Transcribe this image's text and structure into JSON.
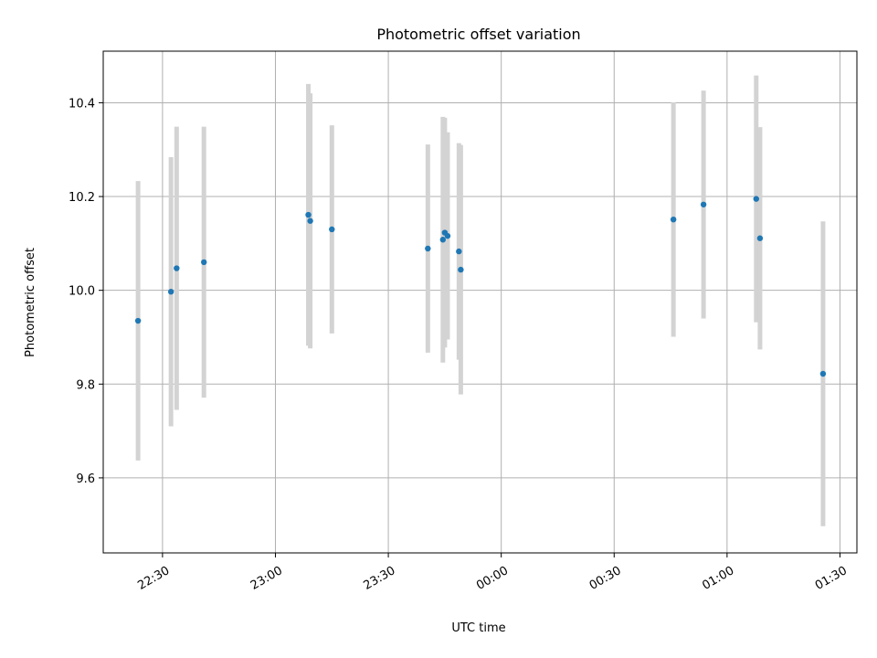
{
  "chart_data": {
    "type": "scatter",
    "title": "Photometric offset variation",
    "xlabel": "UTC time",
    "ylabel": "Photometric offset",
    "x_ticks": [
      "22:30",
      "23:00",
      "23:30",
      "00:00",
      "00:30",
      "01:00",
      "01:30"
    ],
    "y_ticks": [
      "9.6",
      "9.8",
      "10.0",
      "10.2",
      "10.4"
    ],
    "xlim": [
      "22:14:15",
      "01:34:30"
    ],
    "ylim": [
      9.44,
      10.51
    ],
    "grid": true,
    "colors": {
      "point": "#1f77b4",
      "errorbar": "#d3d3d3"
    },
    "series": [
      {
        "points": [
          {
            "x": "22:23:30",
            "y": 9.935,
            "err": 0.298
          },
          {
            "x": "22:32:15",
            "y": 9.997,
            "err": 0.287
          },
          {
            "x": "22:33:45",
            "y": 10.047,
            "err": 0.302
          },
          {
            "x": "22:41:00",
            "y": 10.06,
            "err": 0.289
          },
          {
            "x": "23:08:45",
            "y": 10.161,
            "err": 0.279
          },
          {
            "x": "23:09:15",
            "y": 10.148,
            "err": 0.272
          },
          {
            "x": "23:15:00",
            "y": 10.13,
            "err": 0.222
          },
          {
            "x": "23:40:30",
            "y": 10.089,
            "err": 0.222
          },
          {
            "x": "23:44:30",
            "y": 10.108,
            "err": 0.262
          },
          {
            "x": "23:45:00",
            "y": 10.123,
            "err": 0.245
          },
          {
            "x": "23:45:45",
            "y": 10.116,
            "err": 0.221
          },
          {
            "x": "23:48:45",
            "y": 10.083,
            "err": 0.231
          },
          {
            "x": "23:49:15",
            "y": 10.044,
            "err": 0.266
          },
          {
            "x": "00:45:45",
            "y": 10.151,
            "err": 0.25
          },
          {
            "x": "00:53:45",
            "y": 10.183,
            "err": 0.243
          },
          {
            "x": "01:07:45",
            "y": 10.195,
            "err": 0.263
          },
          {
            "x": "01:08:45",
            "y": 10.111,
            "err": 0.237
          },
          {
            "x": "01:25:30",
            "y": 9.822,
            "err": 0.325
          }
        ]
      }
    ]
  }
}
